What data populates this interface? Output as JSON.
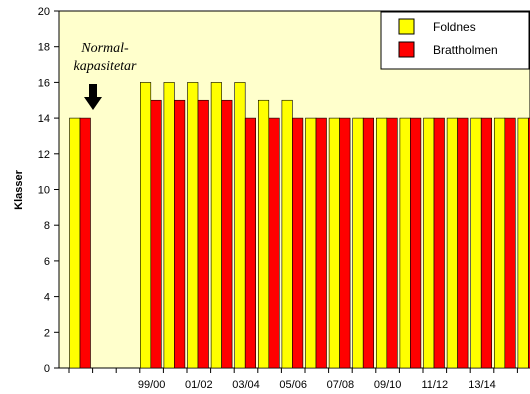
{
  "chart_data": {
    "type": "bar",
    "ylabel": "Klasser",
    "xlabel": "",
    "ylim": [
      0,
      20
    ],
    "yticks": [
      0,
      2,
      4,
      6,
      8,
      10,
      12,
      14,
      16,
      18,
      20
    ],
    "grid": false,
    "plot_background": "#ffffcc",
    "legend_position": "top-right",
    "categories": [
      "Normalkapasitet",
      "",
      "",
      "",
      "",
      "",
      "",
      "",
      "",
      "",
      "",
      "",
      "",
      "",
      "",
      "",
      "",
      "",
      "",
      ""
    ],
    "x_tick_labels": [
      "",
      "",
      "",
      "99/00",
      "",
      "01/02",
      "",
      "03/04",
      "",
      "05/06",
      "",
      "07/08",
      "",
      "09/10",
      "",
      "11/12",
      "",
      "13/14",
      "",
      ""
    ],
    "series": [
      {
        "name": "Foldnes",
        "color": "#ffff00",
        "values": [
          14,
          null,
          null,
          16,
          16,
          16,
          16,
          16,
          15,
          15,
          14,
          14,
          14,
          14,
          14,
          14,
          14,
          14,
          14,
          14
        ]
      },
      {
        "name": "Brattholmen",
        "color": "#ff0000",
        "values": [
          14,
          null,
          null,
          15,
          15,
          15,
          15,
          14,
          14,
          14,
          14,
          14,
          14,
          14,
          14,
          14,
          14,
          14,
          14,
          14
        ]
      }
    ],
    "annotation": {
      "line1": "Normal-",
      "line2": "kapasitetar",
      "icon": "arrow-down-icon"
    }
  }
}
